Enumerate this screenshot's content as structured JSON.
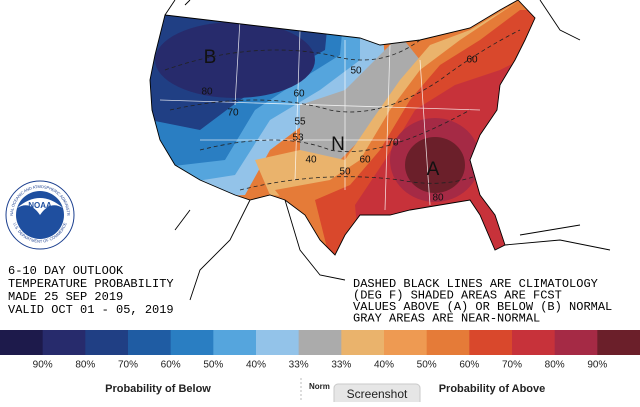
{
  "map": {
    "labels": {
      "b": "B",
      "a": "A",
      "n": "N",
      "c80w": "80",
      "c70w": "70",
      "c60w": "60",
      "c50n": "50",
      "c55": "55",
      "c53": "53",
      "c40": "40",
      "c50c": "50",
      "c60c": "60",
      "c70c": "70",
      "c80se": "80",
      "c60ne": "60"
    }
  },
  "logo": {
    "name": "NOAA",
    "ring_top": "NATIONAL OCEANIC AND ATMOSPHERIC ADMINISTRATION",
    "ring_bottom": "U.S. DEPARTMENT OF COMMERCE"
  },
  "outlook": {
    "lines": [
      "6-10 DAY OUTLOOK",
      "TEMPERATURE PROBABILITY",
      "MADE   25 SEP 2019",
      "VALID   OCT 01 - 05, 2019"
    ]
  },
  "notes": {
    "lines": [
      "DASHED BLACK LINES ARE CLIMATOLOGY",
      "(DEG F) SHADED AREAS ARE FCST",
      "VALUES ABOVE (A) OR BELOW (B) NORMAL",
      "GRAY AREAS ARE NEAR-NORMAL"
    ]
  },
  "legend": {
    "colors": [
      "#1d1a4b",
      "#272b6c",
      "#203f84",
      "#1f5ca3",
      "#2a7ec2",
      "#55a5dd",
      "#93c3e9",
      "#ababab",
      "#eab36c",
      "#ee9a52",
      "#e57b38",
      "#d9482c",
      "#c7323a",
      "#a52a45",
      "#6b1f2a"
    ],
    "labels": [
      "90%",
      "80%",
      "70%",
      "60%",
      "50%",
      "40%",
      "33%",
      "33%",
      "40%",
      "50%",
      "60%",
      "70%",
      "80%",
      "90%"
    ],
    "below": "Probability of Below",
    "normal": "Norm",
    "above": "Probability of Above"
  },
  "tooltip": "Screenshot"
}
